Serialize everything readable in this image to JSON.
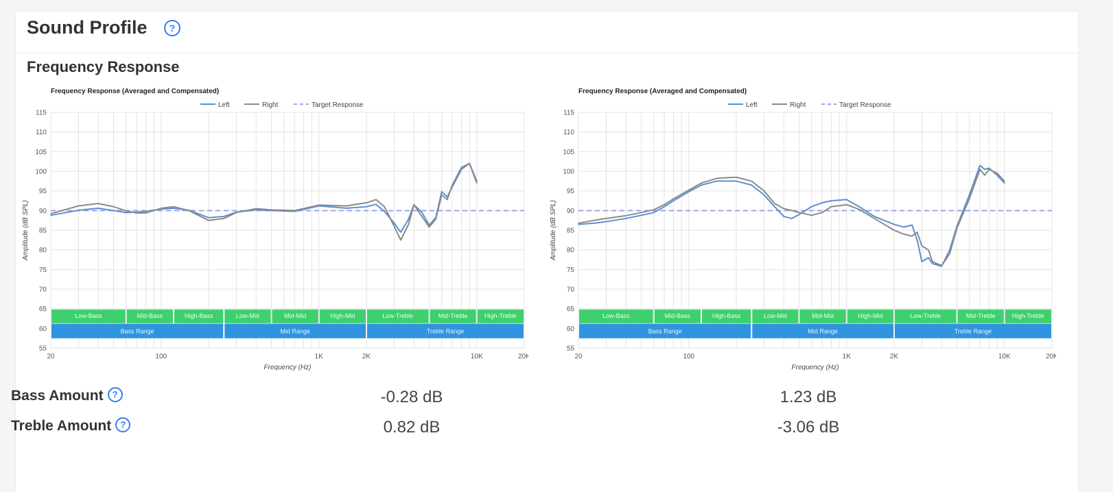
{
  "header": {
    "title": "Sound Profile",
    "help_icon": "help-circle-icon"
  },
  "section": {
    "title": "Frequency Response"
  },
  "colors": {
    "left": "#5b8fd0",
    "right": "#8a8a8a",
    "target": "#9aa4f0",
    "band_green": "#3ecf6e",
    "band_blue": "#2f94e0",
    "accent": "#2f80ed"
  },
  "chart_data": [
    {
      "type": "line",
      "title": "Frequency Response (Averaged and Compensated)",
      "xlabel": "Frequency (Hz)",
      "ylabel": "Amplitude (dB SPL)",
      "xscale": "log",
      "xlim": [
        20,
        20000
      ],
      "ylim": [
        55,
        115
      ],
      "yticks": [
        55,
        60,
        65,
        70,
        75,
        80,
        85,
        90,
        95,
        100,
        105,
        110,
        115
      ],
      "xticks": [
        {
          "v": 20,
          "label": "20"
        },
        {
          "v": 100,
          "label": "100"
        },
        {
          "v": 1000,
          "label": "1K"
        },
        {
          "v": 2000,
          "label": "2K"
        },
        {
          "v": 10000,
          "label": "10K"
        },
        {
          "v": 20000,
          "label": "20K"
        }
      ],
      "legend": [
        "Left",
        "Right",
        "Target Response"
      ],
      "target": 90,
      "bands_top": [
        {
          "label": "Low-Bass",
          "from": 20,
          "to": 60
        },
        {
          "label": "Mid-Bass",
          "from": 60,
          "to": 120
        },
        {
          "label": "High-Bass",
          "from": 120,
          "to": 250
        },
        {
          "label": "Low-Mid",
          "from": 250,
          "to": 500
        },
        {
          "label": "Mid-Mid",
          "from": 500,
          "to": 1000
        },
        {
          "label": "High-Mid",
          "from": 1000,
          "to": 2000
        },
        {
          "label": "Low-Treble",
          "from": 2000,
          "to": 5000
        },
        {
          "label": "Mid-Treble",
          "from": 5000,
          "to": 10000
        },
        {
          "label": "High-Treble",
          "from": 10000,
          "to": 20000
        }
      ],
      "bands_bottom": [
        {
          "label": "Bass Range",
          "from": 20,
          "to": 250
        },
        {
          "label": "Mid Range",
          "from": 250,
          "to": 2000
        },
        {
          "label": "Treble Range",
          "from": 2000,
          "to": 20000
        }
      ],
      "series": [
        {
          "name": "Left",
          "x": [
            20,
            25,
            30,
            40,
            50,
            60,
            70,
            80,
            100,
            120,
            150,
            200,
            250,
            300,
            400,
            500,
            700,
            1000,
            1500,
            2000,
            2300,
            2600,
            3000,
            3300,
            3700,
            4000,
            4500,
            5000,
            5500,
            6000,
            6500,
            7000,
            8000,
            9000,
            10000
          ],
          "values": [
            88.8,
            89.5,
            90.1,
            90.6,
            90.0,
            89.5,
            89.6,
            89.8,
            90.4,
            90.6,
            90.1,
            88.2,
            88.5,
            89.6,
            90.2,
            90.0,
            89.8,
            91.2,
            90.6,
            91.0,
            91.6,
            89.8,
            86.8,
            84.5,
            87.8,
            91.5,
            89.5,
            86.3,
            88.2,
            94.8,
            93.5,
            96.0,
            100.5,
            102.0,
            97.0
          ]
        },
        {
          "name": "Right",
          "x": [
            20,
            25,
            30,
            40,
            50,
            60,
            70,
            80,
            100,
            120,
            150,
            200,
            250,
            300,
            400,
            500,
            700,
            1000,
            1500,
            2000,
            2300,
            2600,
            3000,
            3300,
            3700,
            4000,
            4500,
            5000,
            5500,
            6000,
            6500,
            7000,
            8000,
            9000,
            10000
          ],
          "values": [
            89.2,
            90.3,
            91.2,
            91.8,
            91.0,
            89.9,
            89.4,
            89.4,
            90.6,
            91.0,
            90.0,
            87.5,
            88.0,
            89.5,
            90.5,
            90.2,
            90.0,
            91.4,
            91.2,
            92.0,
            92.8,
            91.0,
            86.0,
            82.5,
            86.5,
            91.5,
            88.5,
            85.8,
            87.8,
            94.0,
            92.8,
            96.5,
            101.0,
            102.0,
            97.5
          ]
        }
      ]
    },
    {
      "type": "line",
      "title": "Frequency Response (Averaged and Compensated)",
      "xlabel": "Frequency (Hz)",
      "ylabel": "Amplitude (dB SPL)",
      "xscale": "log",
      "xlim": [
        20,
        20000
      ],
      "ylim": [
        55,
        115
      ],
      "yticks": [
        55,
        60,
        65,
        70,
        75,
        80,
        85,
        90,
        95,
        100,
        105,
        110,
        115
      ],
      "xticks": [
        {
          "v": 20,
          "label": "20"
        },
        {
          "v": 100,
          "label": "100"
        },
        {
          "v": 1000,
          "label": "1K"
        },
        {
          "v": 2000,
          "label": "2K"
        },
        {
          "v": 10000,
          "label": "10K"
        },
        {
          "v": 20000,
          "label": "20K"
        }
      ],
      "legend": [
        "Left",
        "Right",
        "Target Response"
      ],
      "target": 90,
      "bands_top": [
        {
          "label": "Low-Bass",
          "from": 20,
          "to": 60
        },
        {
          "label": "Mid-Bass",
          "from": 60,
          "to": 120
        },
        {
          "label": "High-Bass",
          "from": 120,
          "to": 250
        },
        {
          "label": "Low-Mid",
          "from": 250,
          "to": 500
        },
        {
          "label": "Mid-Mid",
          "from": 500,
          "to": 1000
        },
        {
          "label": "High-Mid",
          "from": 1000,
          "to": 2000
        },
        {
          "label": "Low-Treble",
          "from": 2000,
          "to": 5000
        },
        {
          "label": "Mid-Treble",
          "from": 5000,
          "to": 10000
        },
        {
          "label": "High-Treble",
          "from": 10000,
          "to": 20000
        }
      ],
      "bands_bottom": [
        {
          "label": "Bass Range",
          "from": 20,
          "to": 250
        },
        {
          "label": "Mid Range",
          "from": 250,
          "to": 2000
        },
        {
          "label": "Treble Range",
          "from": 2000,
          "to": 20000
        }
      ],
      "series": [
        {
          "name": "Left",
          "x": [
            20,
            25,
            30,
            40,
            50,
            60,
            70,
            80,
            100,
            120,
            150,
            200,
            250,
            300,
            350,
            400,
            450,
            500,
            600,
            700,
            800,
            1000,
            1200,
            1500,
            2000,
            2300,
            2600,
            2800,
            3000,
            3300,
            3500,
            4000,
            4500,
            5000,
            6000,
            7000,
            7500,
            8000,
            9000,
            10000
          ],
          "values": [
            86.5,
            86.8,
            87.2,
            88.0,
            88.8,
            89.5,
            91.0,
            92.5,
            94.8,
            96.5,
            97.5,
            97.5,
            96.5,
            94.0,
            91.0,
            88.5,
            88.0,
            89.0,
            91.0,
            92.0,
            92.5,
            92.8,
            91.0,
            88.5,
            86.5,
            85.8,
            86.3,
            82.5,
            77.0,
            78.0,
            76.5,
            75.8,
            80.0,
            86.0,
            94.0,
            101.5,
            100.5,
            100.8,
            99.0,
            97.0
          ]
        },
        {
          "name": "Right",
          "x": [
            20,
            25,
            30,
            40,
            50,
            60,
            70,
            80,
            100,
            120,
            150,
            200,
            250,
            300,
            350,
            400,
            450,
            500,
            600,
            700,
            800,
            1000,
            1200,
            1500,
            2000,
            2300,
            2600,
            2800,
            3000,
            3300,
            3500,
            4000,
            4500,
            5000,
            6000,
            7000,
            7500,
            8000,
            9000,
            10000
          ],
          "values": [
            86.8,
            87.5,
            88.0,
            88.7,
            89.5,
            90.2,
            91.5,
            93.0,
            95.2,
            97.0,
            98.2,
            98.5,
            97.5,
            95.0,
            91.8,
            90.5,
            90.0,
            89.5,
            88.8,
            89.5,
            91.0,
            91.5,
            90.3,
            88.0,
            85.0,
            84.0,
            83.5,
            84.5,
            81.0,
            80.0,
            77.0,
            76.0,
            79.0,
            85.5,
            93.0,
            100.5,
            99.0,
            100.5,
            99.5,
            97.5
          ]
        }
      ]
    }
  ],
  "metrics": [
    {
      "label": "Bass Amount",
      "values": [
        "-0.28 dB",
        "1.23 dB"
      ]
    },
    {
      "label": "Treble Amount",
      "values": [
        "0.82 dB",
        "-3.06 dB"
      ]
    }
  ]
}
